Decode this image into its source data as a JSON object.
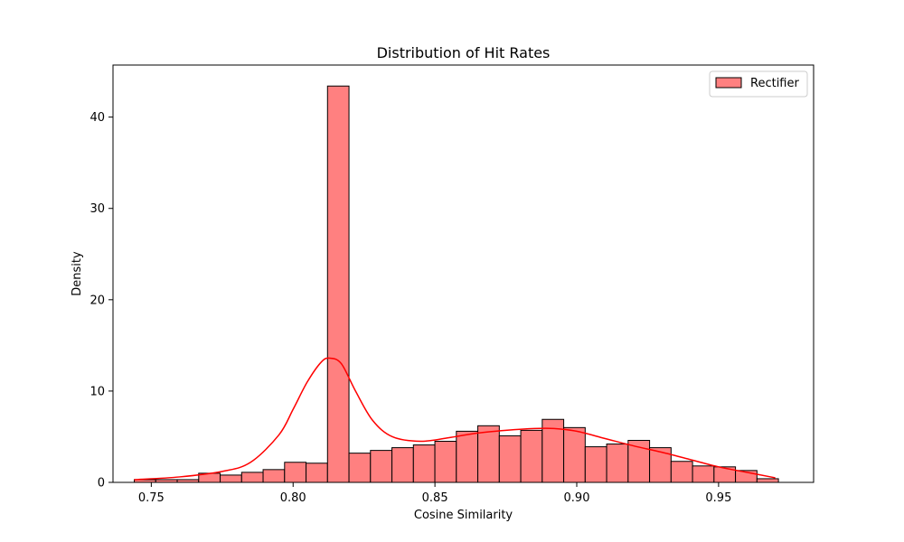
{
  "chart_data": {
    "type": "bar",
    "title": "Distribution of Hit Rates",
    "xlabel": "Cosine Similarity",
    "ylabel": "Density",
    "xlim": [
      0.7365,
      0.9835
    ],
    "ylim": [
      0,
      45.7
    ],
    "xticks": [
      0.75,
      0.8,
      0.85,
      0.9,
      0.95
    ],
    "xtick_labels": [
      "0.75",
      "0.80",
      "0.85",
      "0.90",
      "0.95"
    ],
    "yticks": [
      0,
      10,
      20,
      30,
      40
    ],
    "ytick_labels": [
      "0",
      "10",
      "20",
      "30",
      "40"
    ],
    "grid": false,
    "legend_position": "top-right",
    "bin_start": 0.744,
    "bin_width": 0.00757,
    "series": [
      {
        "name": "Rectifier",
        "color": "#ff8080",
        "edge_color": "#000000",
        "values": [
          0.3,
          0.3,
          0.3,
          1.0,
          0.8,
          1.1,
          1.4,
          2.2,
          2.1,
          43.4,
          3.2,
          3.5,
          3.8,
          4.1,
          4.5,
          5.6,
          6.2,
          5.1,
          5.7,
          6.9,
          6.0,
          3.9,
          4.2,
          4.6,
          3.8,
          2.3,
          1.8,
          1.7,
          1.3,
          0.4
        ]
      }
    ],
    "kde": {
      "color": "#ff0000",
      "x": [
        0.744,
        0.76,
        0.775,
        0.785,
        0.795,
        0.8,
        0.805,
        0.81,
        0.813,
        0.817,
        0.822,
        0.828,
        0.835,
        0.845,
        0.855,
        0.865,
        0.875,
        0.885,
        0.892,
        0.9,
        0.91,
        0.92,
        0.93,
        0.94,
        0.95,
        0.96,
        0.97
      ],
      "y": [
        0.3,
        0.6,
        1.2,
        2.2,
        5.2,
        8.0,
        11.0,
        13.2,
        13.6,
        13.0,
        10.0,
        6.8,
        5.0,
        4.5,
        4.9,
        5.4,
        5.7,
        5.9,
        5.9,
        5.6,
        4.8,
        4.0,
        3.3,
        2.5,
        1.7,
        1.1,
        0.5
      ]
    }
  }
}
